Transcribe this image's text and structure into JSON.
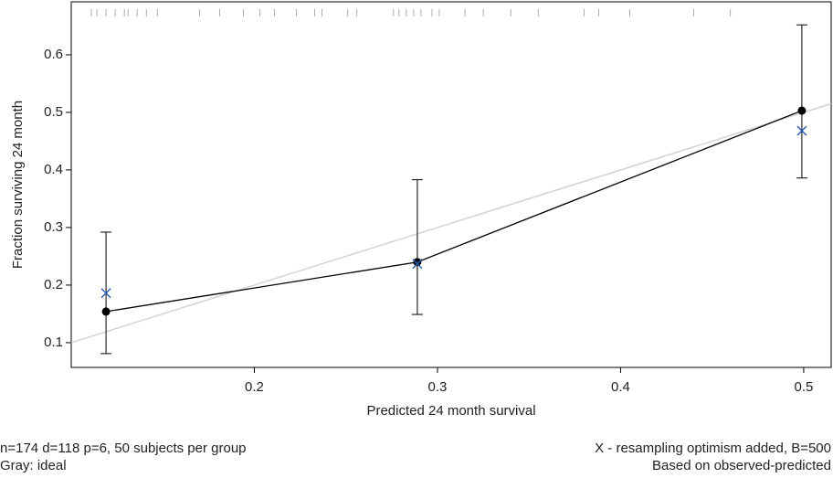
{
  "chart_data": {
    "type": "calibration",
    "xlabel": "Predicted 24 month survival",
    "ylabel": "Fraction surviving 24 month",
    "xlim": [
      0.1,
      0.515
    ],
    "ylim": [
      0.057,
      0.692
    ],
    "xticks": [
      0.2,
      0.3,
      0.4,
      0.5
    ],
    "yticks": [
      0.1,
      0.2,
      0.3,
      0.4,
      0.5,
      0.6
    ],
    "x": [
      0.119,
      0.289,
      0.499
    ],
    "observed": [
      0.154,
      0.24,
      0.503
    ],
    "lower": [
      0.081,
      0.149,
      0.386
    ],
    "upper": [
      0.292,
      0.383,
      0.652
    ],
    "corrected": [
      0.186,
      0.237,
      0.468
    ],
    "observed_color": "#000000",
    "corrected_color": "#2b5fb4",
    "ideal_color": "#d3d3d3",
    "rug": [
      0.111,
      0.114,
      0.119,
      0.124,
      0.129,
      0.131,
      0.136,
      0.141,
      0.147,
      0.17,
      0.181,
      0.194,
      0.203,
      0.211,
      0.223,
      0.233,
      0.237,
      0.251,
      0.256,
      0.276,
      0.279,
      0.283,
      0.287,
      0.291,
      0.297,
      0.301,
      0.315,
      0.325,
      0.34,
      0.355,
      0.38,
      0.388,
      0.405,
      0.44,
      0.46
    ],
    "notes_left": [
      "n=174 d=118 p=6, 50 subjects per group",
      "Gray: ideal"
    ],
    "notes_right": [
      "X - resampling optimism added, B=500",
      "Based on observed-predicted"
    ]
  }
}
